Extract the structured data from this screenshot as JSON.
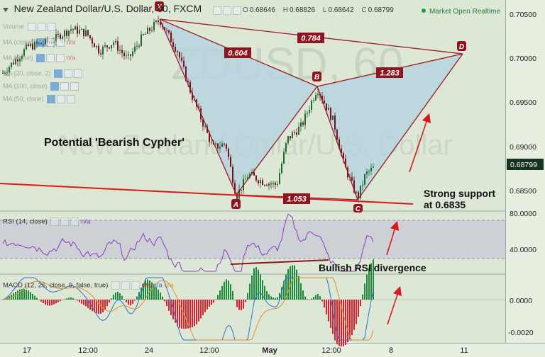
{
  "header": {
    "title": "New Zealand Dollar/U.S. Dollar, 60, FXCM",
    "ohlc": {
      "o_label": "O",
      "o": "0.68646",
      "h_label": "H",
      "h": "0.68826",
      "l_label": "L",
      "l": "0.68642",
      "c_label": "C",
      "c": "0.68799"
    },
    "status": "Market Open",
    "mode": "Realtime"
  },
  "indicator_labels": [
    "Volume",
    "MA (close)",
    "MA (20, close, 2)",
    "MA (100, close)",
    "MA (50, close)",
    "n/a",
    "n/a"
  ],
  "watermark": {
    "symbol": "ZDUSD, 60",
    "name": "New Zealand Dollar/U.S. Dollar"
  },
  "annotations": {
    "pattern": "Potential 'Bearish Cypher'",
    "support_line1": "Strong support",
    "support_line2": "at 0.6835",
    "rsi_note": "Bullish RSI divergence"
  },
  "pattern_points": {
    "X": "X",
    "A": "A",
    "B": "B",
    "C": "C",
    "D": "D"
  },
  "ratios": {
    "xb": "0.604",
    "xd": "0.784",
    "bd": "1.283",
    "ac": "1.053"
  },
  "price_axis": [
    "0.70500",
    "0.70000",
    "0.69500",
    "0.69000",
    "0.68500"
  ],
  "current_price": "0.68799",
  "rsi": {
    "label": "RSI (14, close)",
    "na": "n/a",
    "axis": [
      "80.0000",
      "40.0000"
    ]
  },
  "macd": {
    "label": "MACD (12, 26, close, 9, false, true)",
    "na": [
      "n/a",
      "n/a",
      "n/a"
    ],
    "axis": [
      "0.0000",
      "-0.0020"
    ]
  },
  "time_axis": [
    "17",
    "12:00",
    "24",
    "12:00",
    "May",
    "12:00",
    "8",
    "11"
  ],
  "colors": {
    "bull": "#1d6b2d",
    "bear": "#7a1020",
    "pattern_fill": "#b7d4df",
    "pattern_line": "#9b1b22",
    "support": "#d81a1a",
    "rsi": "#8a3cc0",
    "macd": "#2f6fd1",
    "signal": "#e3912a",
    "hist_pos": "#1b8a3a",
    "hist_neg": "#d8202f"
  },
  "chart_data": {
    "type": "line",
    "title": "New Zealand Dollar/U.S. Dollar, 60, FXCM",
    "series": [
      {
        "name": "Bearish Cypher pattern",
        "points": [
          {
            "label": "X",
            "price": 0.7045
          },
          {
            "label": "A",
            "price": 0.6845
          },
          {
            "label": "B",
            "price": 0.6968
          },
          {
            "label": "C",
            "price": 0.6843
          },
          {
            "label": "D",
            "price": 0.7004
          }
        ]
      }
    ],
    "ratios": {
      "XB": 0.604,
      "XD": 0.784,
      "BD": 1.283,
      "AC": 1.053
    },
    "support_level": 0.6835,
    "last_price": 0.68799,
    "ylim": [
      0.6825,
      0.7055
    ],
    "rsi_levels": [
      80,
      40
    ],
    "macd_levels": [
      0.0,
      -0.002
    ]
  }
}
